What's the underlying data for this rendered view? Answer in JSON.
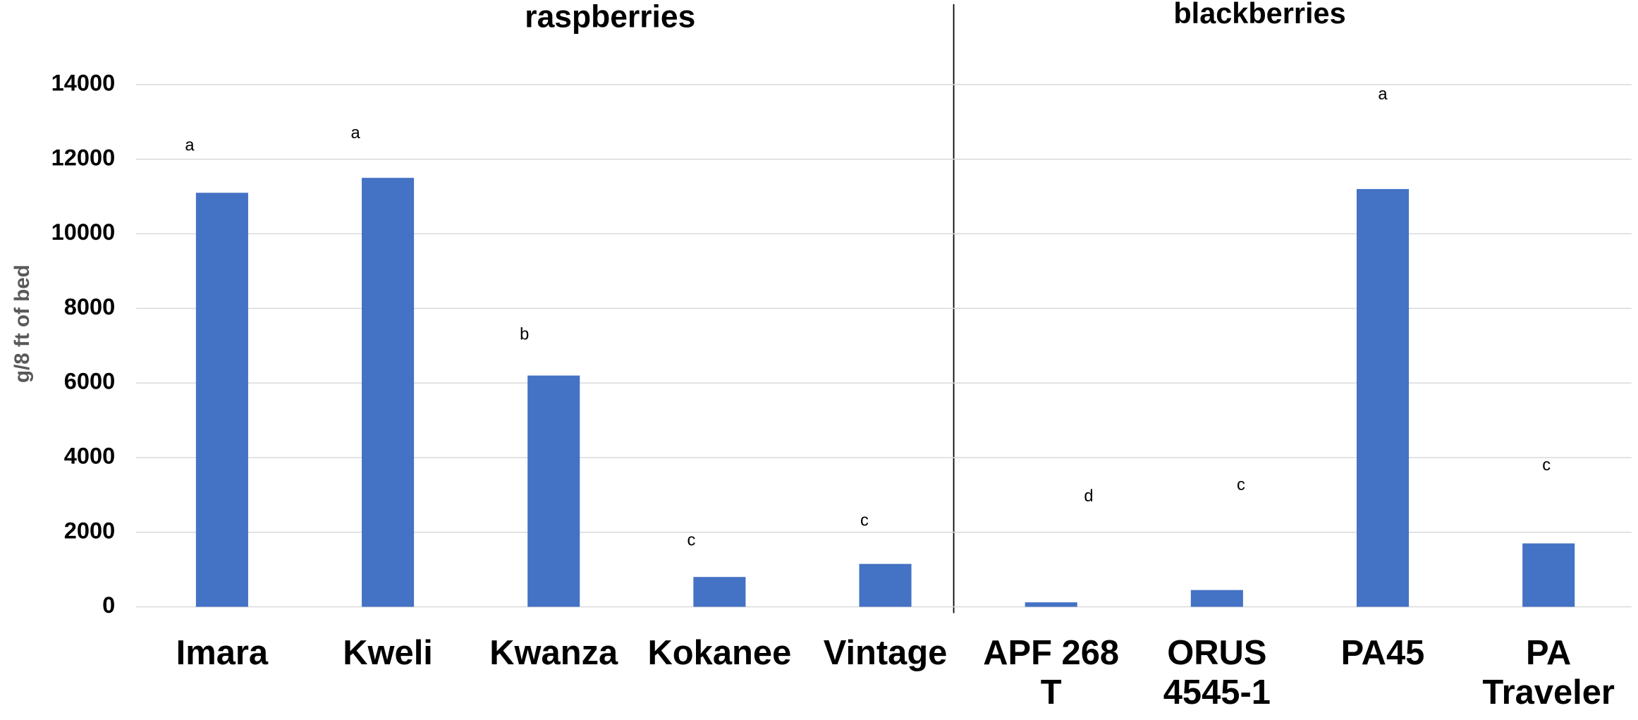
{
  "chart_data": {
    "type": "bar",
    "groups": [
      {
        "name": "raspberries"
      },
      {
        "name": "blackberries"
      }
    ],
    "ylabel": "g/8 ft of bed",
    "categories": [
      "Imara",
      "Kweli",
      "Kwanza",
      "Kokanee",
      "Vintage",
      "APF 268 T",
      "ORUS 4545-1",
      "PA45",
      "PA Traveler"
    ],
    "values": [
      11100,
      11500,
      6200,
      800,
      1150,
      120,
      450,
      11200,
      1700
    ],
    "annotations": [
      "a",
      "a",
      "b",
      "c",
      "c",
      "d",
      "c",
      "a",
      "c"
    ],
    "color": "#4472c4",
    "ylim": [
      0,
      14000
    ],
    "yticks": [
      0,
      2000,
      4000,
      6000,
      8000,
      10000,
      12000,
      14000
    ],
    "grid": true
  }
}
